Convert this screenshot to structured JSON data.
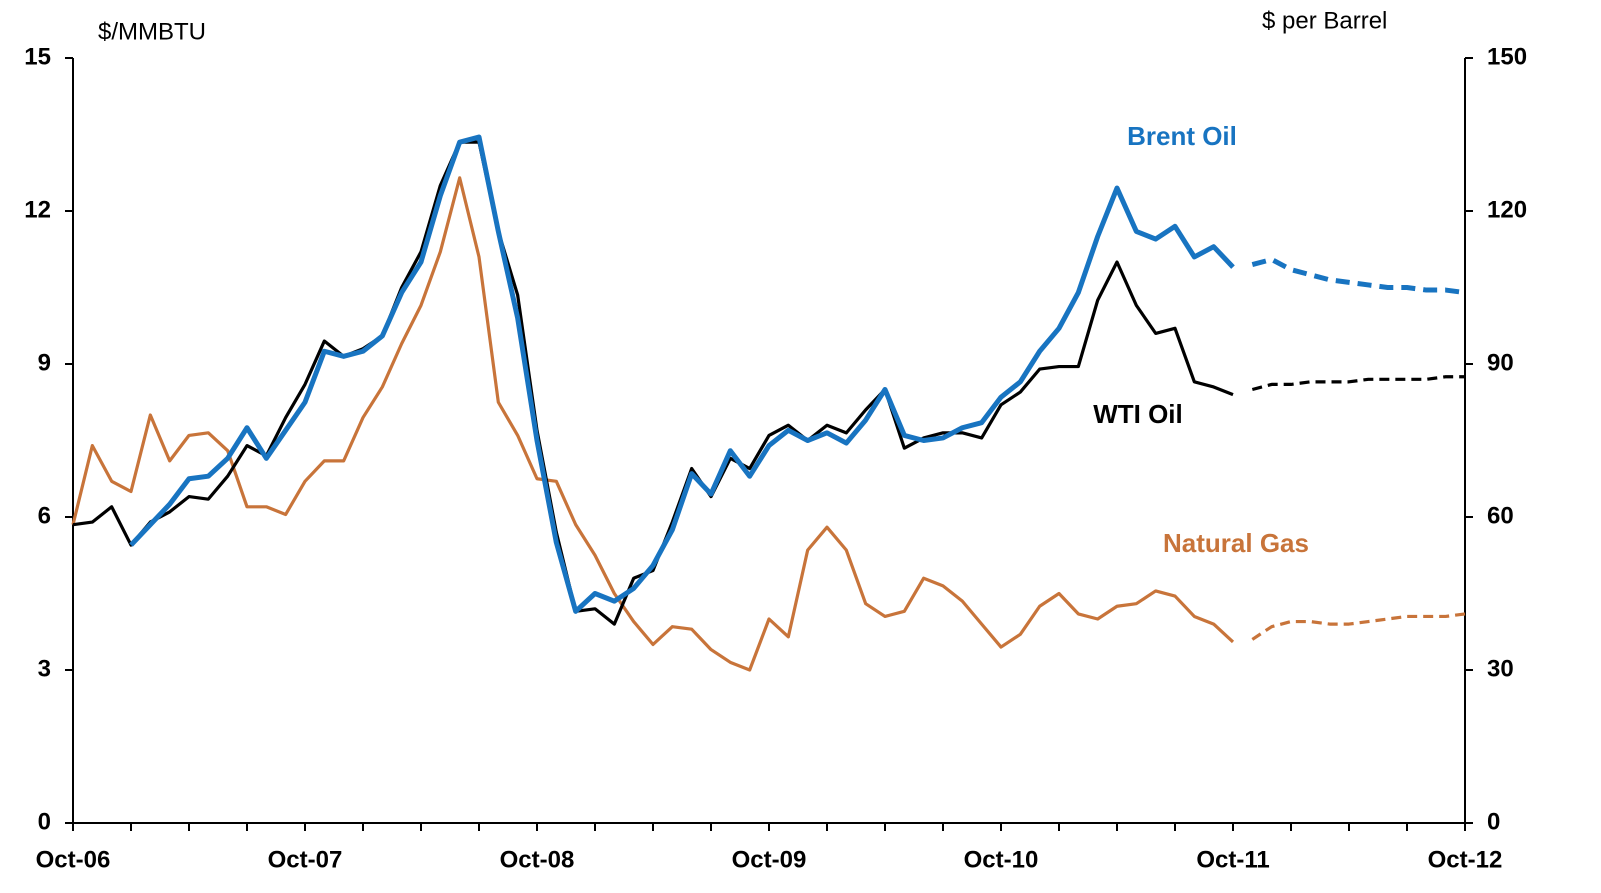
{
  "chart_data": {
    "type": "line",
    "y_label": "$/MMBTU",
    "y2_label": "$ per Barrel",
    "categories": [
      "Oct-06",
      null,
      null,
      null,
      null,
      null,
      null,
      null,
      null,
      null,
      null,
      null,
      "Oct-07",
      null,
      null,
      null,
      null,
      null,
      null,
      null,
      null,
      null,
      null,
      null,
      "Oct-08",
      null,
      null,
      null,
      null,
      null,
      null,
      null,
      null,
      null,
      null,
      null,
      "Oct-09",
      null,
      null,
      null,
      null,
      null,
      null,
      null,
      null,
      null,
      null,
      null,
      "Oct-10",
      null,
      null,
      null,
      null,
      null,
      null,
      null,
      null,
      null,
      null,
      null,
      "Oct-11",
      null,
      null,
      null,
      null,
      null,
      null,
      null,
      null,
      null,
      null,
      null,
      "Oct-12"
    ],
    "ylim": [
      0,
      15
    ],
    "yticks": [
      0,
      3,
      6,
      9,
      12,
      15
    ],
    "y2lim": [
      0,
      150
    ],
    "y2ticks": [
      0,
      30,
      60,
      90,
      120,
      150
    ],
    "series": [
      {
        "name": "Natural Gas",
        "color": "#c8743a",
        "values": [
          5.85,
          7.4,
          6.7,
          6.5,
          8.0,
          7.1,
          7.6,
          7.65,
          7.3,
          6.2,
          6.2,
          6.05,
          6.7,
          7.1,
          7.1,
          7.95,
          8.55,
          9.4,
          10.15,
          11.2,
          12.65,
          11.1,
          8.25,
          7.6,
          6.75,
          6.7,
          5.85,
          5.25,
          4.5,
          3.95,
          3.5,
          3.85,
          3.8,
          3.4,
          3.15,
          3.0,
          4.0,
          3.65,
          5.35,
          5.8,
          5.35,
          4.3,
          4.05,
          4.15,
          4.8,
          4.65,
          4.35,
          3.9,
          3.45,
          3.7,
          4.25,
          4.5,
          4.1,
          4.0,
          4.25,
          4.3,
          4.55,
          4.45,
          4.05,
          3.9,
          3.55,
          null,
          null,
          null,
          null,
          null,
          null,
          null,
          null,
          null,
          null,
          null,
          null
        ]
      },
      {
        "color": "#c8743a",
        "dashed": true,
        "values": [
          null,
          null,
          null,
          null,
          null,
          null,
          null,
          null,
          null,
          null,
          null,
          null,
          null,
          null,
          null,
          null,
          null,
          null,
          null,
          null,
          null,
          null,
          null,
          null,
          null,
          null,
          null,
          null,
          null,
          null,
          null,
          null,
          null,
          null,
          null,
          null,
          null,
          null,
          null,
          null,
          null,
          null,
          null,
          null,
          null,
          null,
          null,
          null,
          null,
          null,
          null,
          null,
          null,
          null,
          null,
          null,
          null,
          null,
          null,
          null,
          null,
          3.6,
          3.85,
          3.95,
          3.95,
          3.9,
          3.9,
          3.95,
          4.0,
          4.05,
          4.05,
          4.05,
          4.1
        ]
      },
      {
        "name": "WTI Oil",
        "color": "#000000",
        "axis": "y2",
        "values": [
          58.5,
          59,
          62,
          54.5,
          59,
          61,
          64,
          63.5,
          68,
          74,
          72,
          79.5,
          86,
          94.5,
          91.5,
          93,
          95.5,
          105,
          112,
          125,
          133.5,
          133.5,
          116,
          103.5,
          77,
          57,
          41.5,
          42,
          39,
          48,
          49.5,
          59,
          69.5,
          64,
          71.5,
          69.5,
          76,
          78,
          75,
          78,
          76.5,
          81,
          85,
          73.5,
          75.5,
          76.5,
          76.5,
          75.5,
          82,
          84.5,
          89,
          89.5,
          89.5,
          102.5,
          110,
          101.5,
          96,
          97,
          86.5,
          85.5,
          84,
          null,
          null,
          null,
          null,
          null,
          null,
          null,
          null,
          null,
          null,
          null,
          null
        ]
      },
      {
        "color": "#000000",
        "axis": "y2",
        "dashed": true,
        "values": [
          null,
          null,
          null,
          null,
          null,
          null,
          null,
          null,
          null,
          null,
          null,
          null,
          null,
          null,
          null,
          null,
          null,
          null,
          null,
          null,
          null,
          null,
          null,
          null,
          null,
          null,
          null,
          null,
          null,
          null,
          null,
          null,
          null,
          null,
          null,
          null,
          null,
          null,
          null,
          null,
          null,
          null,
          null,
          null,
          null,
          null,
          null,
          null,
          null,
          null,
          null,
          null,
          null,
          null,
          null,
          null,
          null,
          null,
          null,
          null,
          null,
          85,
          86,
          86,
          86.5,
          86.5,
          86.5,
          87,
          87,
          87,
          87,
          87.5,
          87.5
        ]
      },
      {
        "name": "Brent Oil",
        "color": "#1874c1",
        "axis": "y2",
        "values": [
          null,
          null,
          null,
          54.5,
          58.5,
          62.5,
          67.5,
          68,
          71.5,
          77.5,
          71.5,
          77,
          82.5,
          92.5,
          91.5,
          92.5,
          95.5,
          104,
          110,
          123,
          133.5,
          134.5,
          116,
          99,
          75,
          55,
          41.5,
          45,
          43.5,
          46,
          50.5,
          57.5,
          68.5,
          64.5,
          73,
          68,
          74,
          77,
          75,
          76.5,
          74.5,
          79,
          85,
          76,
          75,
          75.5,
          77.5,
          78.5,
          83.5,
          86.5,
          92.5,
          97,
          104,
          115,
          124.5,
          116,
          114.5,
          117,
          111,
          113,
          109,
          null,
          null,
          null,
          null,
          null,
          null,
          null,
          null,
          null,
          null,
          null,
          null
        ]
      },
      {
        "color": "#1874c1",
        "axis": "y2",
        "dashed": true,
        "values": [
          null,
          null,
          null,
          null,
          null,
          null,
          null,
          null,
          null,
          null,
          null,
          null,
          null,
          null,
          null,
          null,
          null,
          null,
          null,
          null,
          null,
          null,
          null,
          null,
          null,
          null,
          null,
          null,
          null,
          null,
          null,
          null,
          null,
          null,
          null,
          null,
          null,
          null,
          null,
          null,
          null,
          null,
          null,
          null,
          null,
          null,
          null,
          null,
          null,
          null,
          null,
          null,
          null,
          null,
          null,
          null,
          null,
          null,
          null,
          null,
          null,
          109.5,
          110.5,
          108.5,
          107.5,
          106.5,
          106,
          105.5,
          105,
          105,
          104.5,
          104.5,
          104
        ]
      }
    ]
  }
}
